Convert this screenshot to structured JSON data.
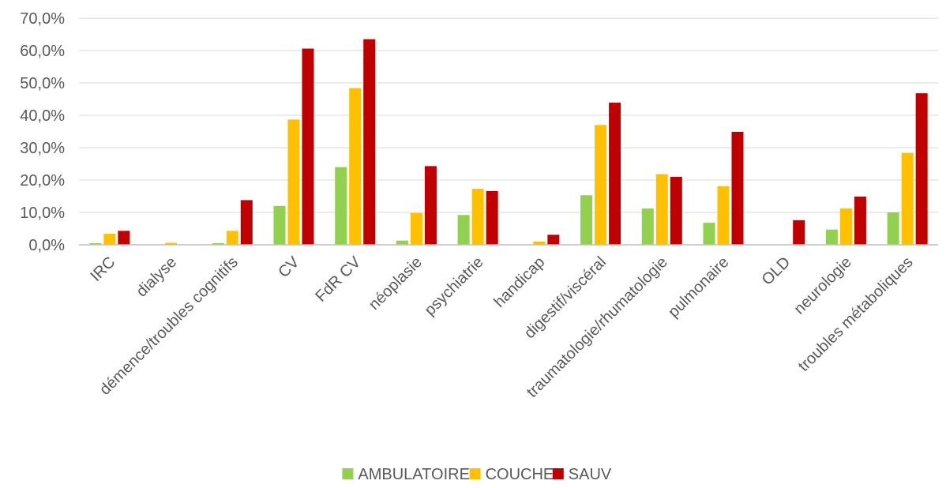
{
  "chart_data": {
    "type": "bar",
    "title": "",
    "xlabel": "",
    "ylabel": "",
    "ylim": [
      0,
      70
    ],
    "y_ticks": [
      0,
      10,
      20,
      30,
      40,
      50,
      60,
      70
    ],
    "y_tick_labels": [
      "0,0%",
      "10,0%",
      "20,0%",
      "30,0%",
      "40,0%",
      "50,0%",
      "60,0%",
      "70,0%"
    ],
    "grid": true,
    "legend_position": "bottom",
    "categories": [
      "IRC",
      "dialyse",
      "démence/troubles cognitifs",
      "CV",
      "FdR CV",
      "néoplasie",
      "psychiatrie",
      "handicap",
      "digestif/viscéral",
      "traumatologie/rhumatologie",
      "pulmonaire",
      "OLD",
      "neurologie",
      "troubles métaboliques"
    ],
    "series": [
      {
        "name": "AMBULATOIRE",
        "color": "#92d050",
        "values": [
          0.5,
          0.0,
          0.5,
          12.0,
          24.0,
          1.3,
          9.2,
          0.0,
          15.3,
          11.2,
          6.8,
          0.0,
          4.7,
          10.0
        ]
      },
      {
        "name": "COUCHE",
        "color": "#ffc000",
        "values": [
          3.4,
          0.6,
          4.3,
          38.7,
          48.4,
          9.8,
          17.3,
          1.0,
          37.0,
          21.8,
          18.1,
          0.0,
          11.2,
          28.4
        ]
      },
      {
        "name": "SAUV",
        "color": "#c00000",
        "values": [
          4.3,
          0.0,
          13.8,
          60.6,
          63.5,
          24.3,
          16.6,
          3.1,
          43.9,
          21.0,
          34.9,
          7.6,
          14.9,
          46.8
        ]
      }
    ]
  }
}
